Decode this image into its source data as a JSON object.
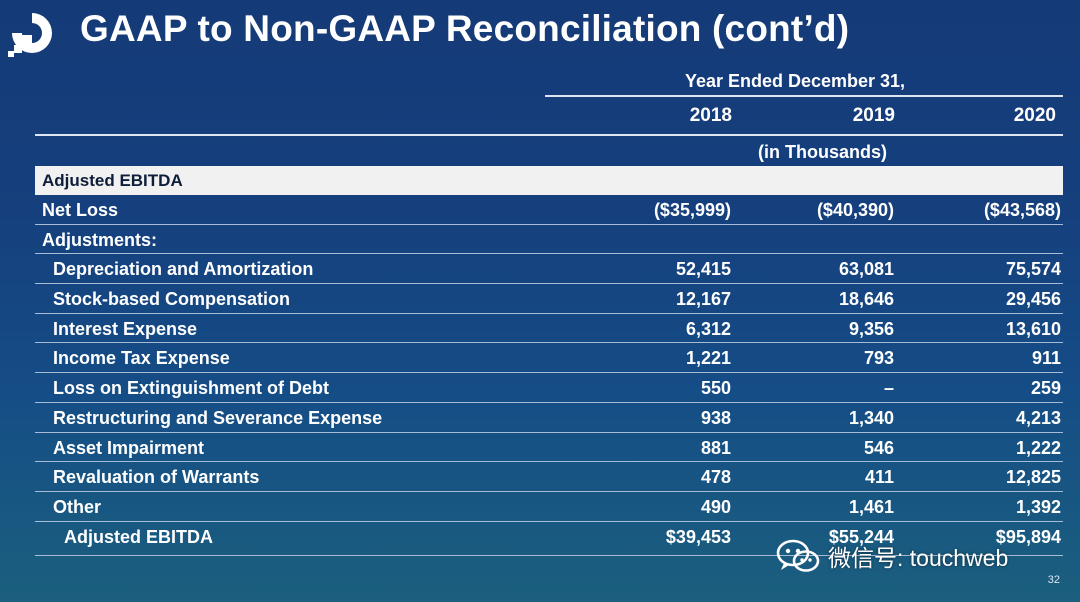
{
  "slide": {
    "title": "GAAP to Non-GAAP Reconciliation (cont’d)",
    "period_header": "Year Ended December 31,",
    "years": [
      "2018",
      "2019",
      "2020"
    ],
    "units": "(in Thousands)",
    "section": "Adjusted EBITDA",
    "rows": [
      {
        "label": "Net Loss",
        "values": [
          "($35,999)",
          "($40,390)",
          "($43,568)"
        ]
      },
      {
        "label": "Adjustments:",
        "values": [
          "",
          "",
          ""
        ]
      },
      {
        "label": "Depreciation and Amortization",
        "values": [
          "52,415",
          "63,081",
          "75,574"
        ]
      },
      {
        "label": "Stock-based Compensation",
        "values": [
          "12,167",
          "18,646",
          "29,456"
        ]
      },
      {
        "label": "Interest Expense",
        "values": [
          "6,312",
          "9,356",
          "13,610"
        ]
      },
      {
        "label": "Income Tax Expense",
        "values": [
          "1,221",
          "793",
          "911"
        ]
      },
      {
        "label": "Loss on Extinguishment of Debt",
        "values": [
          "550",
          "–",
          "259"
        ]
      },
      {
        "label": "Restructuring and Severance Expense",
        "values": [
          "938",
          "1,340",
          "4,213"
        ]
      },
      {
        "label": "Asset Impairment",
        "values": [
          "881",
          "546",
          "1,222"
        ]
      },
      {
        "label": "Revaluation of Warrants",
        "values": [
          "478",
          "411",
          "12,825"
        ]
      },
      {
        "label": "Other",
        "values": [
          "490",
          "1,461",
          "1,392"
        ]
      },
      {
        "label": "Adjusted EBITDA",
        "values": [
          "$39,453",
          "$55,244",
          "$95,894"
        ]
      }
    ],
    "page_number": "32"
  },
  "watermark": {
    "text": "微信号: touchweb",
    "icon": "wechat-icon"
  },
  "colors": {
    "background_top": "#153a78",
    "background_bottom": "#1b5f7e",
    "band": "#f1f1f1",
    "rule": "#a9bcd6"
  }
}
